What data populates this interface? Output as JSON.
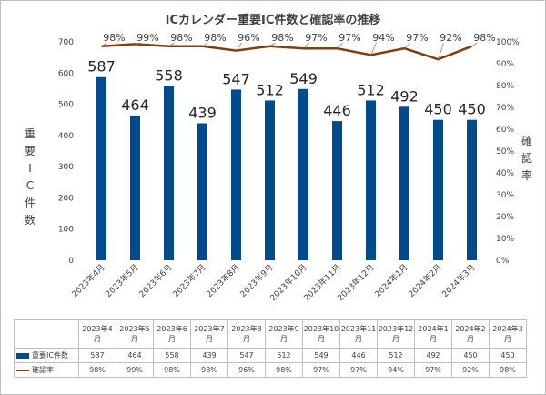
{
  "chart_data": {
    "type": "bar+line",
    "title": "ICカレンダー重要IC件数と確認率の推移",
    "ylabel": "重要IC件数",
    "y2label": "確認率",
    "categories": [
      "2023年4月",
      "2023年5月",
      "2023年6月",
      "2023年7月",
      "2023年8月",
      "2023年9月",
      "2023年10月",
      "2023年11月",
      "2023年12月",
      "2024年1月",
      "2024年2月",
      "2024年3月"
    ],
    "table_headers": [
      [
        "2023年4",
        "月"
      ],
      [
        "2023年5",
        "月"
      ],
      [
        "2023年6",
        "月"
      ],
      [
        "2023年7",
        "月"
      ],
      [
        "2023年8",
        "月"
      ],
      [
        "2023年9",
        "月"
      ],
      [
        "2023年10",
        "月"
      ],
      [
        "2023年11",
        "月"
      ],
      [
        "2023年12",
        "月"
      ],
      [
        "2024年1",
        "月"
      ],
      [
        "2024年2",
        "月"
      ],
      [
        "2024年3",
        "月"
      ]
    ],
    "ylim": [
      0,
      700
    ],
    "yticks": [
      0,
      100,
      200,
      300,
      400,
      500,
      600,
      700
    ],
    "y2lim": [
      0,
      100
    ],
    "y2ticks": [
      "0%",
      "10%",
      "20%",
      "30%",
      "40%",
      "50%",
      "60%",
      "70%",
      "80%",
      "90%",
      "100%"
    ],
    "series": [
      {
        "name": "重要IC件数",
        "type": "bar",
        "color": "#004b8d",
        "values": [
          587,
          464,
          558,
          439,
          547,
          512,
          549,
          446,
          512,
          492,
          450,
          450
        ]
      },
      {
        "name": "確認率",
        "type": "line",
        "color": "#843c0c",
        "values": [
          98,
          99,
          98,
          98,
          96,
          98,
          97,
          97,
          94,
          97,
          92,
          98
        ],
        "labels": [
          "98%",
          "99%",
          "98%",
          "98%",
          "96%",
          "98%",
          "97%",
          "97%",
          "94%",
          "97%",
          "92%",
          "98%"
        ]
      }
    ],
    "grid": false,
    "legend": "data-table"
  }
}
